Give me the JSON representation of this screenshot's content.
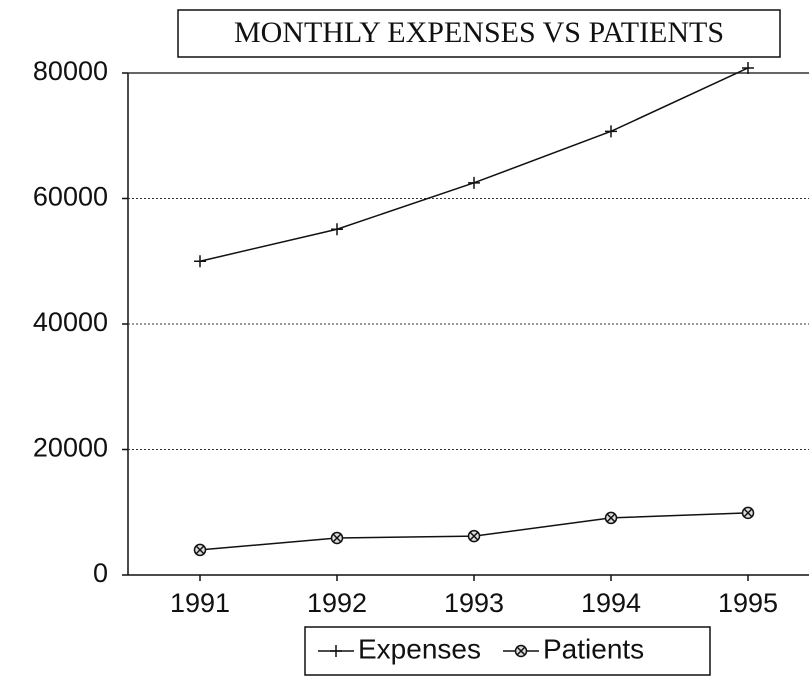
{
  "chart_data": {
    "type": "line",
    "title": "MONTHLY EXPENSES VS PATIENTS",
    "categories": [
      "1991",
      "1992",
      "1993",
      "1994",
      "1995"
    ],
    "series": [
      {
        "name": "Expenses",
        "color": "#111111",
        "values": [
          50000,
          55100,
          62500,
          70700,
          80800
        ]
      },
      {
        "name": "Patients",
        "color": "#111111",
        "values": [
          4000,
          5900,
          6200,
          9100,
          9900
        ]
      }
    ],
    "ylim": [
      0,
      80000
    ],
    "yticks": [
      0,
      20000,
      40000,
      60000,
      80000
    ],
    "grid": true,
    "legend": "bottom"
  }
}
